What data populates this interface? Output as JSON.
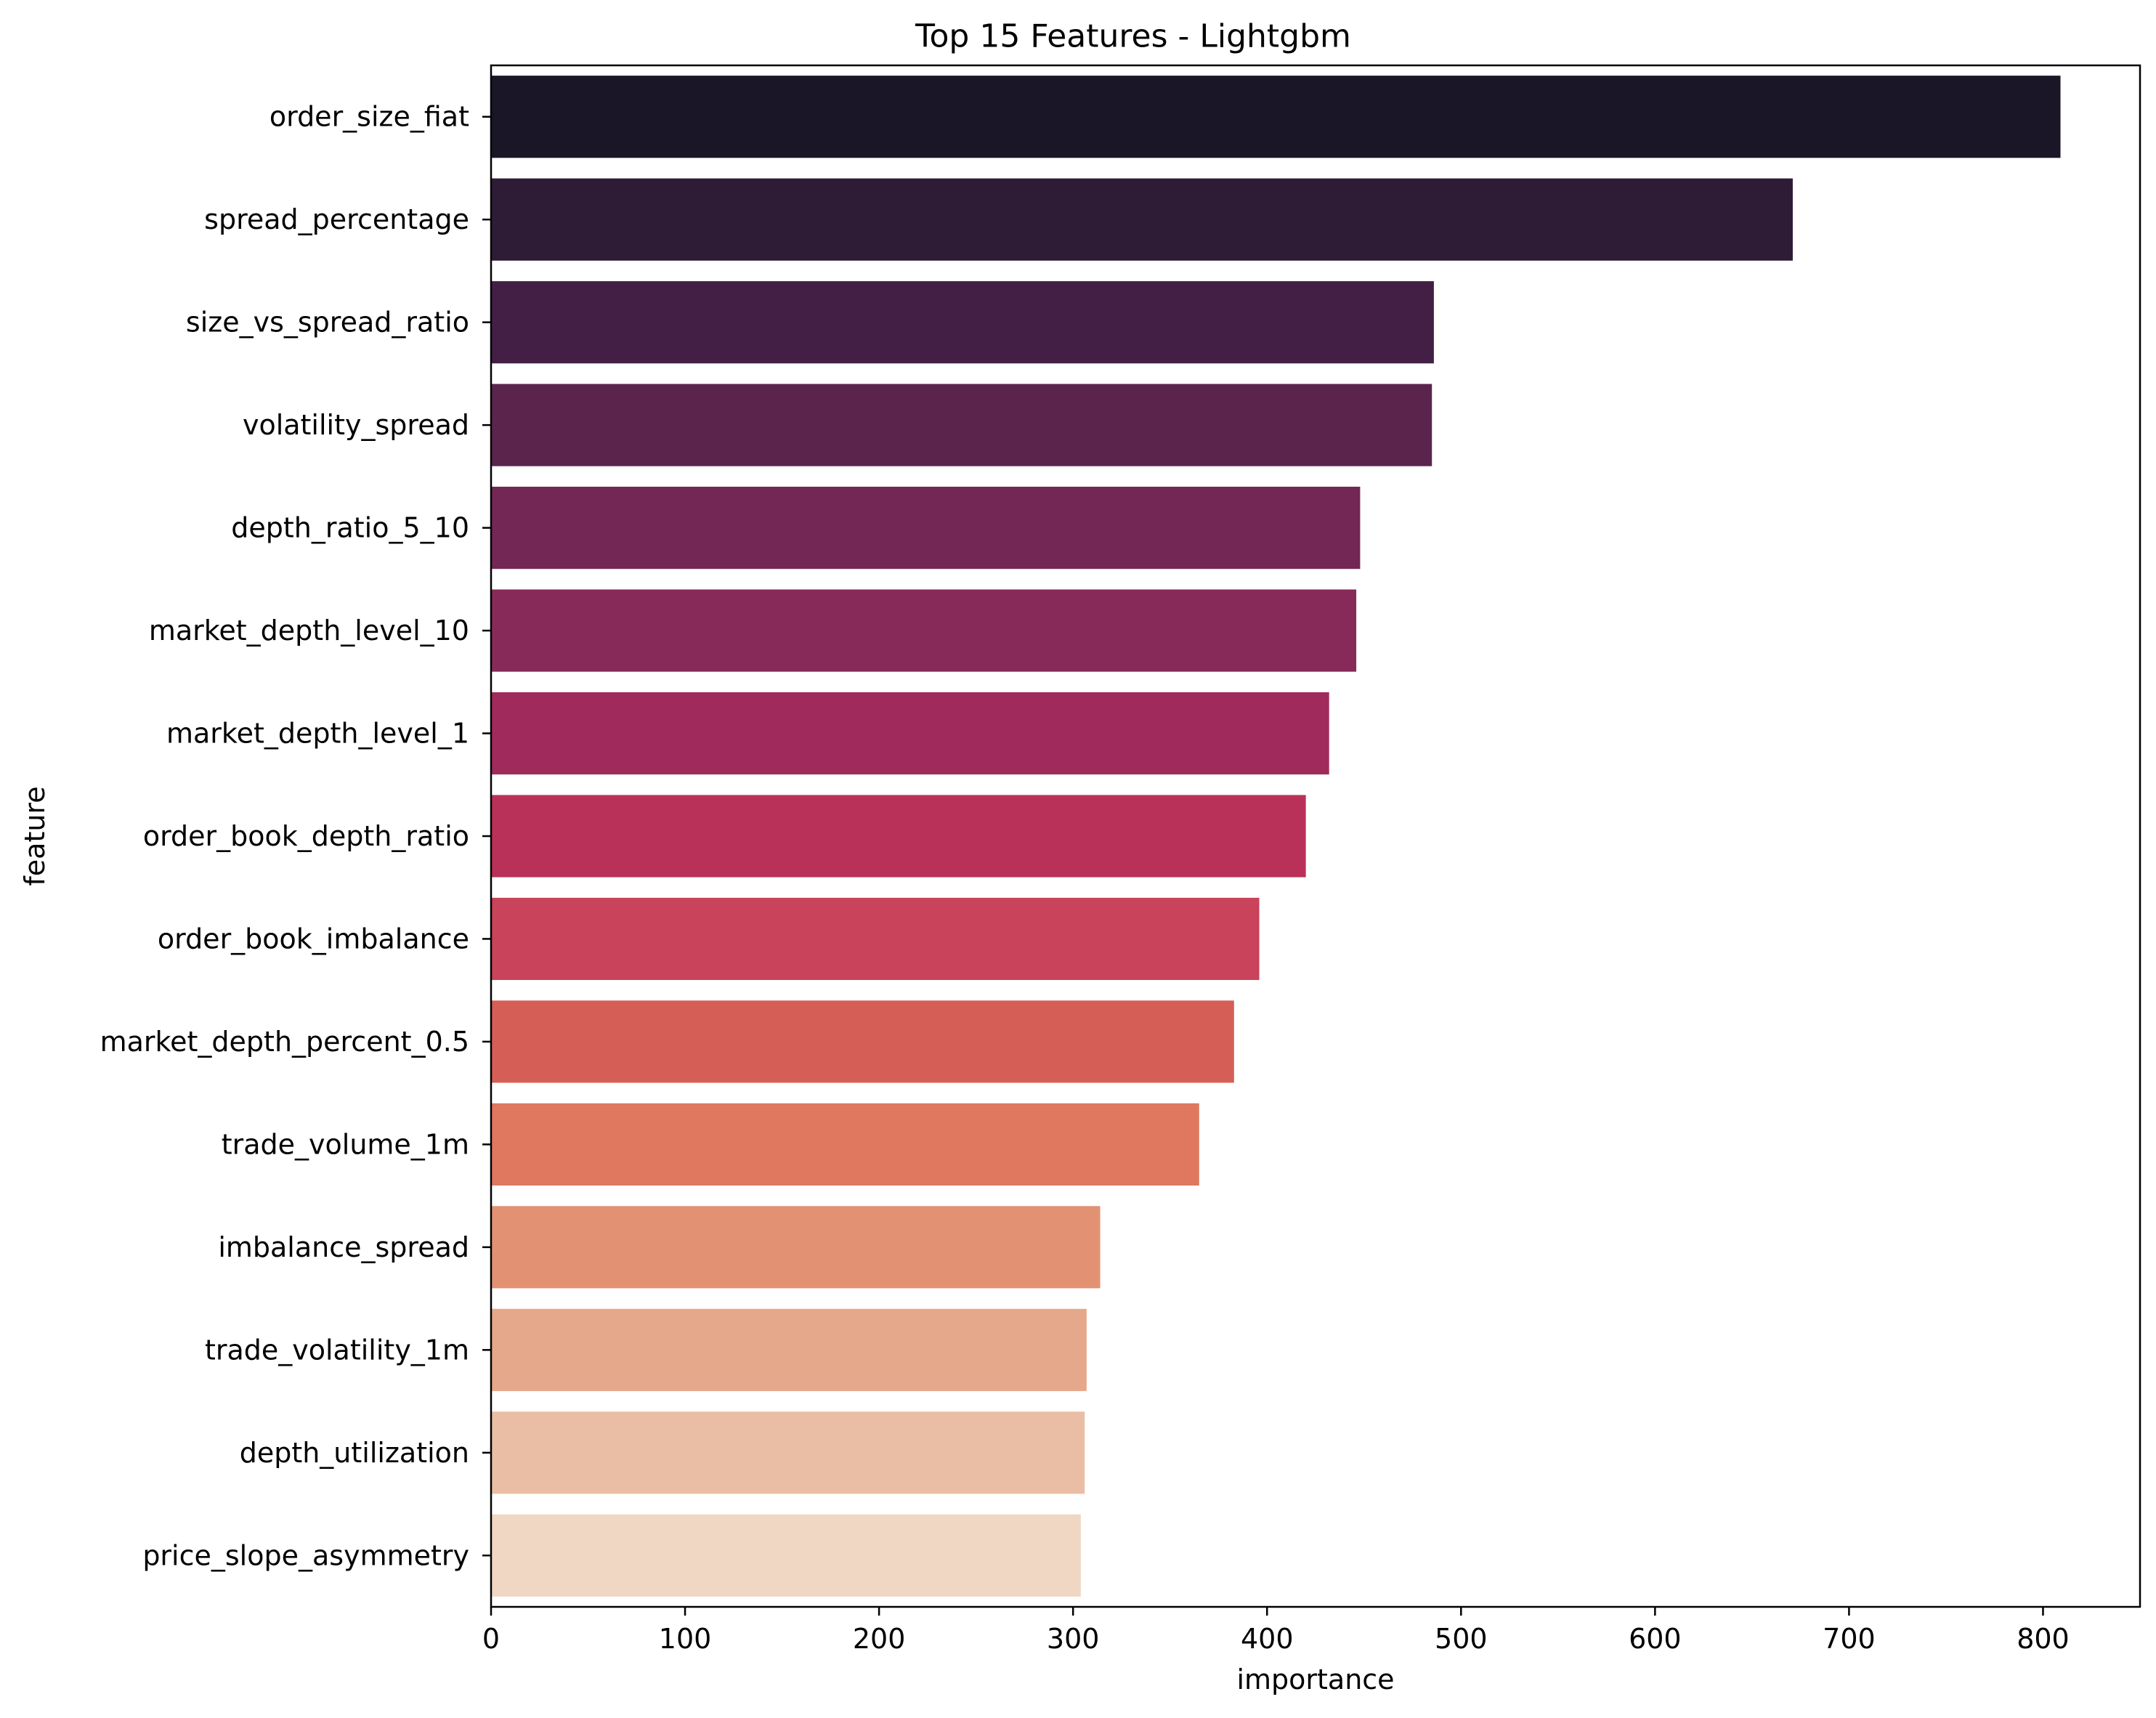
{
  "chart_data": {
    "type": "bar",
    "orientation": "horizontal",
    "title": "Top 15 Features - Lightgbm",
    "xlabel": "importance",
    "ylabel": "feature",
    "xlim": [
      0,
      850
    ],
    "xticks": [
      0,
      100,
      200,
      300,
      400,
      500,
      600,
      700,
      800
    ],
    "grid": false,
    "legend": "none",
    "categories": [
      "order_size_fiat",
      "spread_percentage",
      "size_vs_spread_ratio",
      "volatility_spread",
      "depth_ratio_5_10",
      "market_depth_level_10",
      "market_depth_level_1",
      "order_book_depth_ratio",
      "order_book_imbalance",
      "market_depth_percent_0.5",
      "trade_volume_1m",
      "imbalance_spread",
      "trade_volatility_1m",
      "depth_utilization",
      "price_slope_asymmetry"
    ],
    "values": [
      809,
      671,
      486,
      485,
      448,
      446,
      432,
      420,
      396,
      383,
      365,
      314,
      307,
      306,
      304
    ],
    "colors": [
      "#1a1627",
      "#2e1c37",
      "#431f45",
      "#5b244d",
      "#722754",
      "#872a5a",
      "#a12a5c",
      "#b93158",
      "#c9435a",
      "#d55f56",
      "#df785f",
      "#e29273",
      "#e5a88a",
      "#eabea5",
      "#efd7c4"
    ]
  }
}
